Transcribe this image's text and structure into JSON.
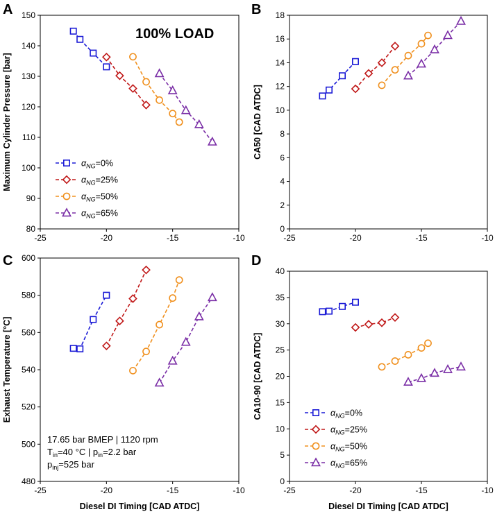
{
  "colors": {
    "NG0": "#1a1ad6",
    "NG25": "#c01818",
    "NG50": "#f0901e",
    "NG65": "#7a2ea6"
  },
  "series_meta": [
    {
      "key": "NG0",
      "legend_pre": "α",
      "legend_sub": "NG",
      "legend_post": "=0%",
      "marker": "square"
    },
    {
      "key": "NG25",
      "legend_pre": "α",
      "legend_sub": "NG",
      "legend_post": "=25%",
      "marker": "diamond"
    },
    {
      "key": "NG50",
      "legend_pre": "α",
      "legend_sub": "NG",
      "legend_post": "=50%",
      "marker": "circle"
    },
    {
      "key": "NG65",
      "legend_pre": "α",
      "legend_sub": "NG",
      "legend_post": "=65%",
      "marker": "triangle"
    }
  ],
  "annotations": {
    "load": "100% LOAD",
    "cond_line1": "17.65 bar BMEP | 1120 rpm",
    "cond_line2_a": "T",
    "cond_line2_sub1": "in",
    "cond_line2_b": "=40 °C | p",
    "cond_line2_sub2": "in",
    "cond_line2_c": "=2.2 bar",
    "cond_line3_a": "p",
    "cond_line3_sub": "inj",
    "cond_line3_b": "=525 bar"
  },
  "chart_data": [
    {
      "panel": "A",
      "type": "line",
      "title": "",
      "xlabel": "",
      "ylabel": "Maximum Cylinder Pressure [bar]",
      "xlim": [
        -25,
        -10
      ],
      "ylim": [
        80,
        150
      ],
      "xticks": [
        -25,
        -20,
        -15,
        -10
      ],
      "yticks": [
        80,
        90,
        100,
        110,
        120,
        130,
        140,
        150
      ],
      "grid": false,
      "legend": "bottom-left",
      "series": [
        {
          "name": "αNG=0%",
          "x": [
            -22.5,
            -22,
            -21,
            -20
          ],
          "y": [
            144.8,
            142.1,
            137.6,
            133.1
          ]
        },
        {
          "name": "αNG=25%",
          "x": [
            -20,
            -19,
            -18,
            -17
          ],
          "y": [
            136.3,
            130.2,
            126.0,
            120.6
          ]
        },
        {
          "name": "αNG=50%",
          "x": [
            -18,
            -17,
            -16,
            -15,
            -14.5
          ],
          "y": [
            136.4,
            128.2,
            122.2,
            117.8,
            115.0
          ]
        },
        {
          "name": "αNG=65%",
          "x": [
            -16,
            -15,
            -14,
            -13,
            -12
          ],
          "y": [
            130.9,
            125.3,
            118.8,
            114.2,
            108.5
          ]
        }
      ]
    },
    {
      "panel": "B",
      "type": "line",
      "title": "",
      "xlabel": "",
      "ylabel": "CA50 [CAD ATDC]",
      "xlim": [
        -25,
        -10
      ],
      "ylim": [
        0,
        18
      ],
      "xticks": [
        -25,
        -20,
        -15,
        -10
      ],
      "yticks": [
        0,
        2,
        4,
        6,
        8,
        10,
        12,
        14,
        16,
        18
      ],
      "grid": false,
      "legend": "none",
      "series": [
        {
          "name": "αNG=0%",
          "x": [
            -22.5,
            -22,
            -21,
            -20
          ],
          "y": [
            11.2,
            11.7,
            12.9,
            14.1
          ]
        },
        {
          "name": "αNG=25%",
          "x": [
            -20,
            -19,
            -18,
            -17
          ],
          "y": [
            11.8,
            13.1,
            14.0,
            15.4
          ]
        },
        {
          "name": "αNG=50%",
          "x": [
            -18,
            -17,
            -16,
            -15,
            -14.5
          ],
          "y": [
            12.1,
            13.4,
            14.6,
            15.6,
            16.3
          ]
        },
        {
          "name": "αNG=65%",
          "x": [
            -16,
            -15,
            -14,
            -13,
            -12
          ],
          "y": [
            12.9,
            13.9,
            15.1,
            16.3,
            17.5
          ]
        }
      ]
    },
    {
      "panel": "C",
      "type": "line",
      "title": "",
      "xlabel": "Diesel DI Timing [CAD ATDC]",
      "ylabel": "Exhaust Temperature [°C]",
      "xlim": [
        -25,
        -10
      ],
      "ylim": [
        480,
        600
      ],
      "xticks": [
        -25,
        -20,
        -15,
        -10
      ],
      "yticks": [
        480,
        500,
        520,
        540,
        560,
        580,
        600
      ],
      "grid": false,
      "legend": "none",
      "series": [
        {
          "name": "αNG=0%",
          "x": [
            -22.5,
            -22,
            -21,
            -20
          ],
          "y": [
            551.5,
            551.2,
            567.0,
            580.0
          ]
        },
        {
          "name": "αNG=25%",
          "x": [
            -20,
            -19,
            -18,
            -17
          ],
          "y": [
            552.8,
            566.2,
            578.2,
            593.6
          ]
        },
        {
          "name": "αNG=50%",
          "x": [
            -18,
            -17,
            -16,
            -15,
            -14.5
          ],
          "y": [
            539.5,
            549.8,
            564.2,
            578.5,
            588.2
          ]
        },
        {
          "name": "αNG=65%",
          "x": [
            -16,
            -15,
            -14,
            -13,
            -12
          ],
          "y": [
            532.9,
            544.7,
            554.8,
            568.5,
            578.8
          ]
        }
      ]
    },
    {
      "panel": "D",
      "type": "line",
      "title": "",
      "xlabel": "Diesel DI Timing [CAD ATDC]",
      "ylabel": "CA10-90 [CAD ATDC]",
      "xlim": [
        -25,
        -10
      ],
      "ylim": [
        0,
        40
      ],
      "xticks": [
        -25,
        -20,
        -15,
        -10
      ],
      "yticks": [
        0,
        5,
        10,
        15,
        20,
        25,
        30,
        35,
        40
      ],
      "grid": false,
      "legend": "bottom-left",
      "series": [
        {
          "name": "αNG=0%",
          "x": [
            -22.5,
            -22,
            -21,
            -20
          ],
          "y": [
            32.3,
            32.4,
            33.3,
            34.1
          ]
        },
        {
          "name": "αNG=25%",
          "x": [
            -20,
            -19,
            -18,
            -17
          ],
          "y": [
            29.3,
            29.9,
            30.2,
            31.2
          ]
        },
        {
          "name": "αNG=50%",
          "x": [
            -18,
            -17,
            -16,
            -15,
            -14.5
          ],
          "y": [
            21.8,
            22.9,
            24.1,
            25.4,
            26.3
          ]
        },
        {
          "name": "αNG=65%",
          "x": [
            -16,
            -15,
            -14,
            -13,
            -12
          ],
          "y": [
            18.9,
            19.6,
            20.6,
            21.3,
            21.8
          ]
        }
      ]
    }
  ]
}
